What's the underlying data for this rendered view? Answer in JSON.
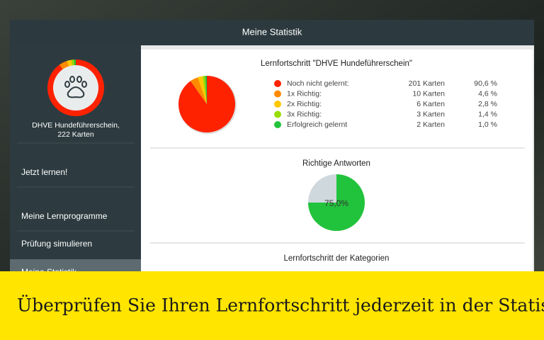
{
  "header": {
    "title": "Meine Statistik"
  },
  "sidebar": {
    "program_name": "DHVE Hundeführerschein,",
    "program_cards": "222 Karten",
    "menu": [
      "Jetzt lernen!",
      "Meine Lernprogramme",
      "Prüfung simulieren",
      "Meine Statistik"
    ]
  },
  "progress": {
    "title": "Lernfortschritt \"DHVE Hundeführerschein\"",
    "items": [
      {
        "name": "Noch nicht gelernt:",
        "color": "#ff2200",
        "count": {
          "value": 201,
          "label": "201 Karten"
        },
        "percent": {
          "value": 90.6,
          "label": "90,6 %"
        }
      },
      {
        "name": "1x Richtig:",
        "color": "#ff8a00",
        "count": {
          "value": 10,
          "label": "10 Karten"
        },
        "percent": {
          "value": 4.6,
          "label": "4,6 %"
        }
      },
      {
        "name": "2x Richtig:",
        "color": "#ffc800",
        "count": {
          "value": 6,
          "label": "6 Karten"
        },
        "percent": {
          "value": 2.8,
          "label": "2,8 %"
        }
      },
      {
        "name": "3x Richtig:",
        "color": "#99dd00",
        "count": {
          "value": 3,
          "label": "3 Karten"
        },
        "percent": {
          "value": 1.4,
          "label": "1,4 %"
        }
      },
      {
        "name": "Erfolgreich gelernt",
        "color": "#22c33c",
        "count": {
          "value": 2,
          "label": "2 Karten"
        },
        "percent": {
          "value": 1.0,
          "label": "1,0 %"
        }
      }
    ]
  },
  "answers": {
    "title": "Richtige Antworten",
    "color": "#22c33c",
    "rest_color": "#cfd8dc",
    "percent": {
      "value": 75.0,
      "label": "75,0%"
    }
  },
  "categories": {
    "title": "Lernfortschritt der Kategorien"
  },
  "banner": {
    "text": "Überprüfen Sie Ihren Lernfortschritt jederzeit in der Statistik."
  }
}
